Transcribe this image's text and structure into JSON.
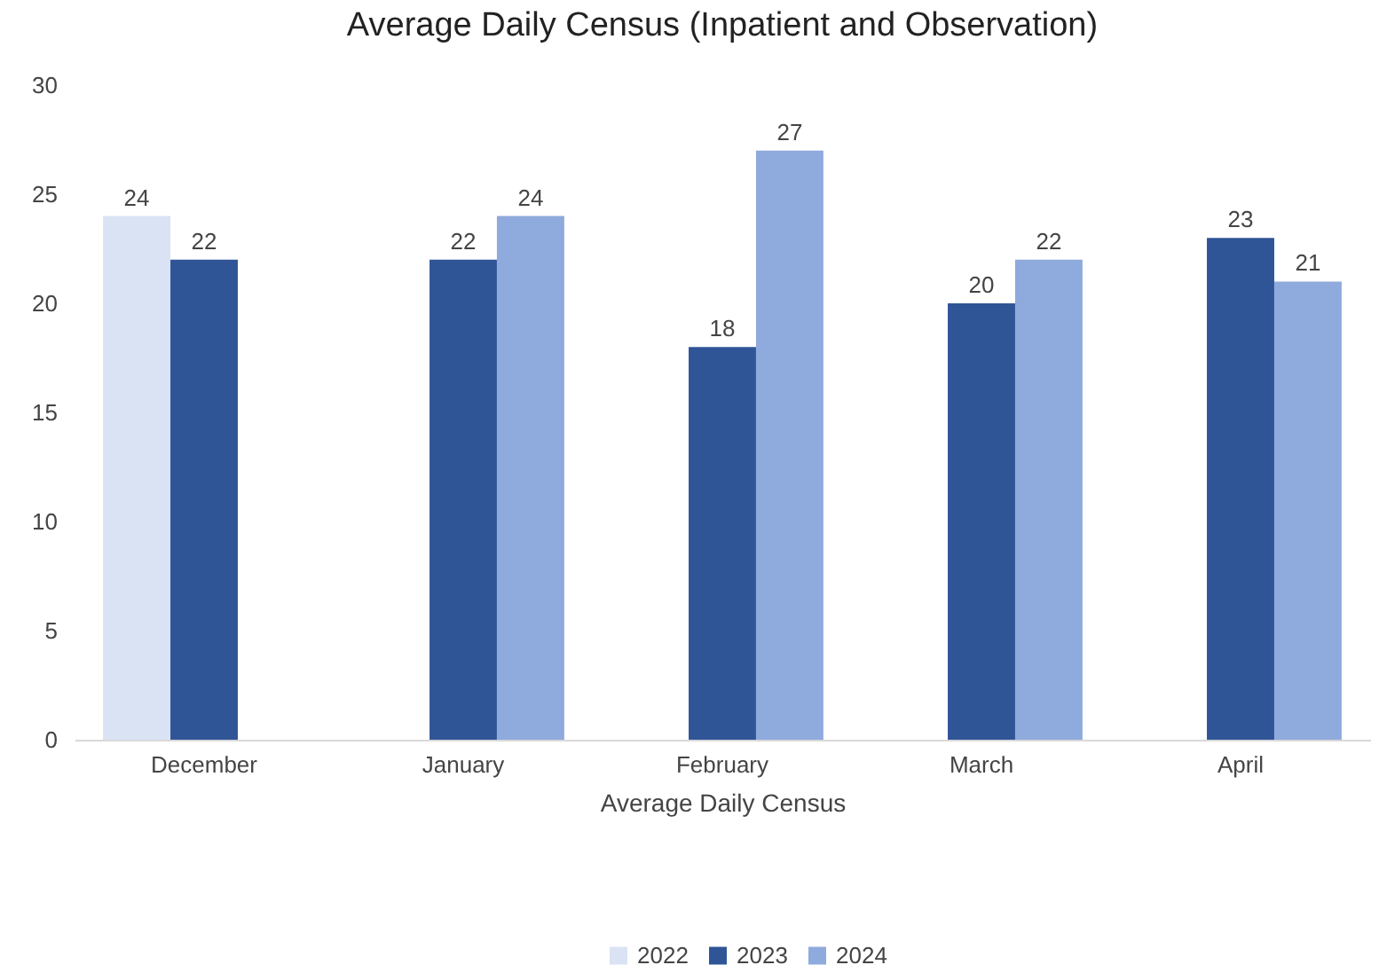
{
  "chart_data": {
    "type": "bar",
    "title": "Average Daily Census (Inpatient and Observation)",
    "xlabel": "Average Daily Census",
    "categories": [
      "December",
      "January",
      "February",
      "March",
      "April"
    ],
    "series": [
      {
        "name": "2022",
        "color": "#dae3f3",
        "values": [
          24,
          null,
          null,
          null,
          null
        ]
      },
      {
        "name": "2023",
        "color": "#2f5597",
        "values": [
          22,
          22,
          18,
          20,
          23
        ]
      },
      {
        "name": "2024",
        "color": "#8faadc",
        "values": [
          null,
          24,
          27,
          22,
          21
        ]
      }
    ],
    "ylim": [
      0,
      30
    ],
    "yticks": [
      0,
      5,
      10,
      15,
      20,
      25,
      30
    ],
    "grid": false,
    "legend": "bottom",
    "data_labels": true
  }
}
